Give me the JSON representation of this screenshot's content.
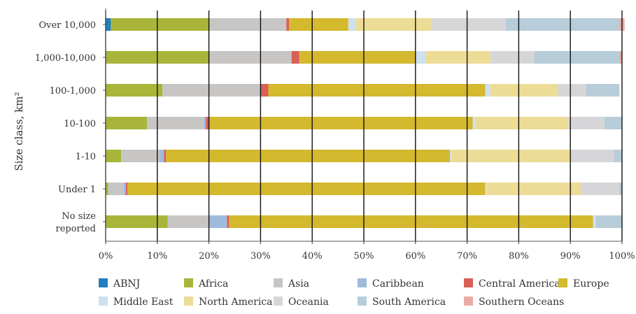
{
  "chart_data": {
    "type": "bar",
    "orientation": "horizontal",
    "stacked": true,
    "normalized_percent": true,
    "ylabel": "Size class, km²",
    "xlabel": "",
    "xlim": [
      0,
      100
    ],
    "x_ticks": [
      "0%",
      "10%",
      "20%",
      "30%",
      "40%",
      "50%",
      "60%",
      "70%",
      "80%",
      "90%",
      "100%"
    ],
    "grid": "vertical",
    "legend_position": "bottom",
    "categories": [
      "Over 10,000",
      "1,000-10,000",
      "100-1,000",
      "10-100",
      "1-10",
      "Under 1",
      "No size reported"
    ],
    "series": [
      {
        "name": "ABNJ",
        "color": "#1f7fbf",
        "values": [
          1.0,
          0.0,
          0.0,
          0.0,
          0.0,
          0.0,
          0.0
        ]
      },
      {
        "name": "Africa",
        "color": "#a8b53a",
        "values": [
          19.0,
          20.0,
          11.0,
          8.0,
          3.0,
          0.5,
          12.0
        ]
      },
      {
        "name": "Asia",
        "color": "#c8c6c4",
        "values": [
          15.0,
          16.0,
          19.0,
          11.0,
          7.5,
          3.0,
          8.0
        ]
      },
      {
        "name": "Caribbean",
        "color": "#9fbbdc",
        "values": [
          0.0,
          0.0,
          0.0,
          0.4,
          0.8,
          0.4,
          3.5
        ]
      },
      {
        "name": "Central America",
        "color": "#d95f57",
        "values": [
          0.5,
          1.5,
          1.5,
          0.7,
          0.4,
          0.3,
          0.4
        ]
      },
      {
        "name": "Europe",
        "color": "#d4b82e",
        "values": [
          11.5,
          22.5,
          42.0,
          51.0,
          55.0,
          69.3,
          70.5
        ]
      },
      {
        "name": "Middle East",
        "color": "#cfe0ef",
        "values": [
          1.5,
          2.0,
          1.0,
          0.5,
          0.3,
          0.2,
          0.5
        ]
      },
      {
        "name": "North America",
        "color": "#ecdc96",
        "values": [
          14.5,
          12.5,
          13.0,
          18.0,
          23.0,
          18.3,
          0.0
        ]
      },
      {
        "name": "Oceania",
        "color": "#d6d6d8",
        "values": [
          14.5,
          8.5,
          5.5,
          7.0,
          8.5,
          7.5,
          0.0
        ]
      },
      {
        "name": "South America",
        "color": "#b7cdd9",
        "values": [
          22.0,
          16.5,
          6.5,
          3.4,
          1.5,
          0.5,
          5.1
        ]
      },
      {
        "name": "Southern Oceans",
        "color": "#e8aca4",
        "values": [
          1.0,
          0.5,
          0.0,
          0.0,
          0.0,
          0.0,
          0.0
        ]
      }
    ]
  }
}
